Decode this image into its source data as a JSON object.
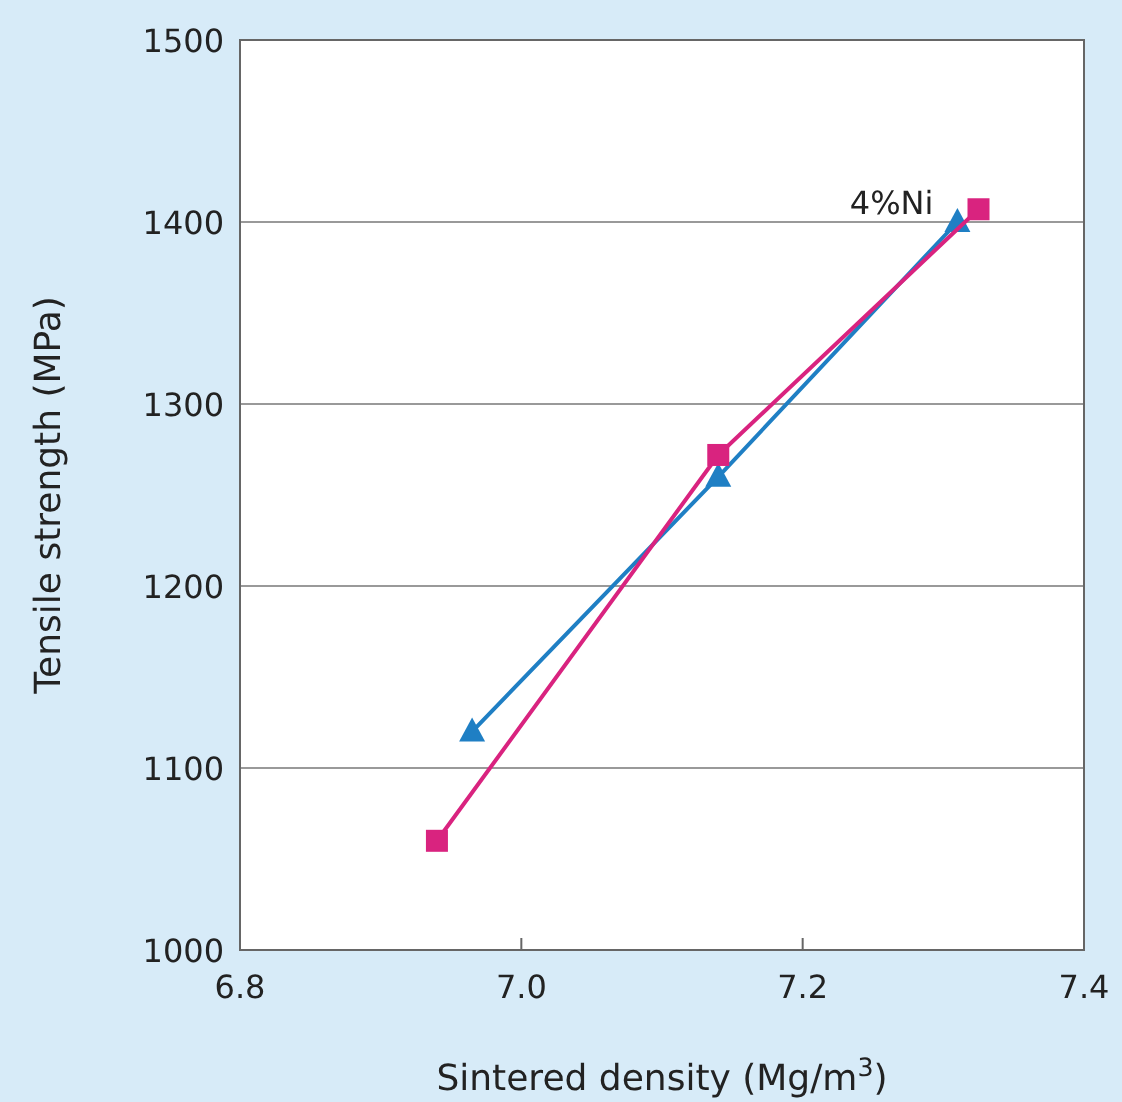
{
  "chart_data": {
    "type": "line",
    "xlabel": "Sintered density (Mg/m$^{3}$)",
    "ylabel": "Tensile strength (MPa)",
    "xlim": [
      6.8,
      7.4
    ],
    "xticks": [
      {
        "value": 6.8,
        "label": "6.8"
      },
      {
        "value": 7,
        "label": "7.0"
      },
      {
        "value": 7.2,
        "label": "7.2"
      },
      {
        "value": 7.4,
        "label": "7.4"
      }
    ],
    "ylim": [
      1000,
      1500
    ],
    "yticks": [
      1000,
      1100,
      1200,
      1300,
      1400,
      1500
    ],
    "grid": "y",
    "series": [
      {
        "name": "4%Ni",
        "color": "#1f7fc4",
        "marker": "triangle",
        "x": [
          6.965,
          7.14,
          7.31
        ],
        "values": [
          1120,
          1260,
          1400
        ]
      },
      {
        "color": "#d9237f",
        "marker": "square",
        "x": [
          6.94,
          7.14,
          7.325
        ],
        "values": [
          1060,
          1272,
          1407
        ]
      }
    ]
  }
}
